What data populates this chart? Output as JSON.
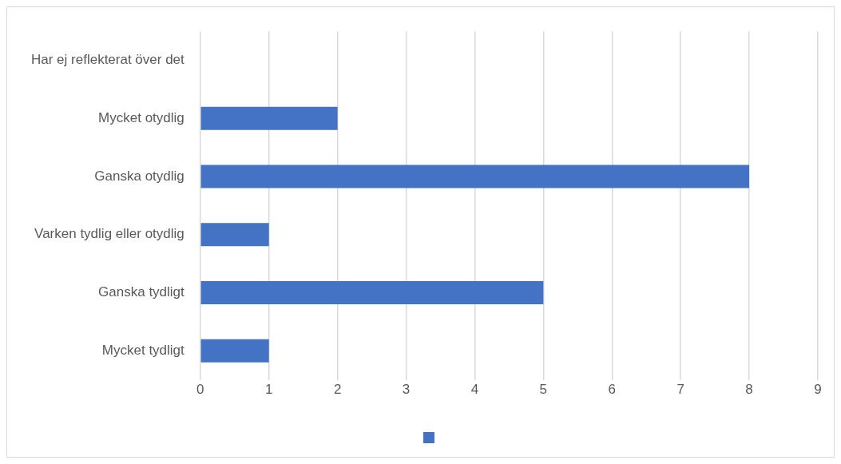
{
  "chart_data": {
    "type": "bar",
    "orientation": "horizontal",
    "categories": [
      "Har ej reflekterat över det",
      "Mycket otydlig",
      "Ganska otydlig",
      "Varken tydlig eller otydlig",
      "Ganska tydligt",
      "Mycket tydligt"
    ],
    "series": [
      {
        "color": "#4472c4",
        "values": [
          0,
          2,
          8,
          1,
          5,
          1
        ]
      }
    ],
    "xlim": [
      0,
      9
    ],
    "xticks": [
      0,
      1,
      2,
      3,
      4,
      5,
      6,
      7,
      8,
      9
    ],
    "grid": "x"
  }
}
